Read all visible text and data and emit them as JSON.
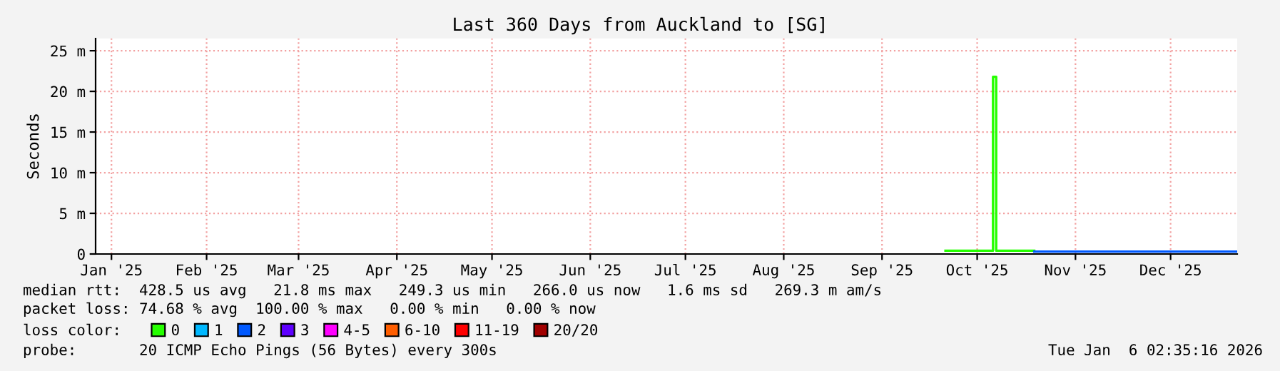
{
  "chart_data": {
    "type": "step",
    "title": "Last 360 Days from Auckland to [SG]",
    "ylabel": "Seconds",
    "xlim": [
      "2025-01-11",
      "2026-01-06"
    ],
    "ylim": [
      0,
      26.5
    ],
    "xticks": [
      {
        "value": "2025-01-16",
        "label": "Jan '25"
      },
      {
        "value": "2025-02-15",
        "label": "Feb '25"
      },
      {
        "value": "2025-03-16",
        "label": "Mar '25"
      },
      {
        "value": "2025-04-16",
        "label": "Apr '25"
      },
      {
        "value": "2025-05-16",
        "label": "May '25"
      },
      {
        "value": "2025-06-16",
        "label": "Jun '25"
      },
      {
        "value": "2025-07-16",
        "label": "Jul '25"
      },
      {
        "value": "2025-08-16",
        "label": "Aug '25"
      },
      {
        "value": "2025-09-16",
        "label": "Sep '25"
      },
      {
        "value": "2025-10-16",
        "label": "Oct '25"
      },
      {
        "value": "2025-11-16",
        "label": "Nov '25"
      },
      {
        "value": "2025-12-16",
        "label": "Dec '25"
      }
    ],
    "yticks": [
      0,
      {
        "value": 5,
        "label": "5 m"
      },
      {
        "value": 10,
        "label": "10 m"
      },
      {
        "value": 15,
        "label": "15 m"
      },
      {
        "value": 20,
        "label": "20 m"
      },
      {
        "value": 25,
        "label": "25 m"
      }
    ],
    "grid": true,
    "legend": "bottom",
    "legend_title": "loss color:",
    "series": [
      {
        "name": "0",
        "color": "#26ff00",
        "x": [
          "2025-10-06",
          "2025-10-20",
          "2025-10-21",
          "2025-10-22",
          "2025-11-03"
        ],
        "values": [
          0.4,
          0.4,
          21.8,
          0.4,
          0.4
        ]
      },
      {
        "name": "1",
        "color": "#00b8ff"
      },
      {
        "name": "2",
        "color": "#0059ff",
        "x": [
          "2025-11-03",
          "2026-01-06"
        ],
        "values": [
          0.3,
          0.3
        ]
      },
      {
        "name": "3",
        "color": "#5e00ff"
      },
      {
        "name": "4-5",
        "color": "#ff00ff"
      },
      {
        "name": "6-10",
        "color": "#ff5e00"
      },
      {
        "name": "11-19",
        "color": "#ff0000"
      },
      {
        "name": "20/20",
        "color": "#a10000"
      }
    ],
    "annotations": [
      "median rtt:  428.5 us avg   21.8 ms max   249.3 us min   266.0 us now   1.6 ms sd   269.3 m am/s",
      "packet loss: 74.68 % avg  100.00 % max   0.00 % min   0.00 % now",
      "probe:       20 ICMP Echo Pings (56 Bytes) every 300s",
      "Tue Jan  6 02:35:16 2026"
    ]
  }
}
